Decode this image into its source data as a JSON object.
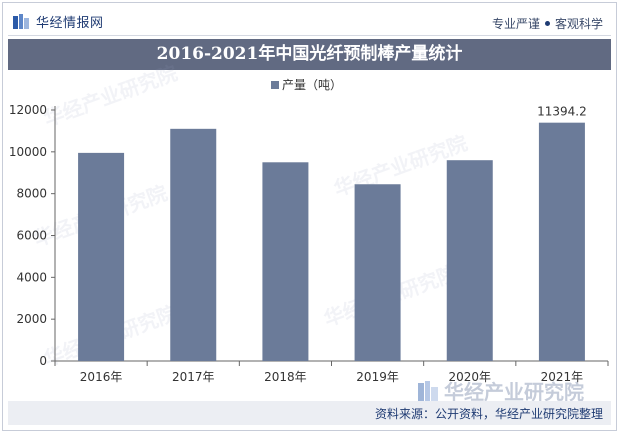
{
  "header": {
    "brand_name": "华经情报网",
    "tag_left": "专业严谨",
    "tag_right": "客观科学"
  },
  "chart_title": "2016-2021年中国光纤预制棒产量统计",
  "footer": {
    "source": "资料来源：公开资料，华经产业研究院整理"
  },
  "watermark": {
    "text": "华经产业研究院"
  },
  "chart_data": {
    "type": "bar",
    "title": "2016-2021年中国光纤预制棒产量统计",
    "categories": [
      "2016年",
      "2017年",
      "2018年",
      "2019年",
      "2020年",
      "2021年"
    ],
    "series": [
      {
        "name": "产量（吨）",
        "values": [
          9950,
          11100,
          9500,
          8450,
          9600,
          11394.2
        ]
      }
    ],
    "data_labels": {
      "2021年": "11394.2"
    },
    "ylim": [
      0,
      12000
    ],
    "yticks": [
      "0",
      "2000",
      "4000",
      "6000",
      "8000",
      "10000",
      "12000"
    ],
    "grid": false,
    "legend_position": "top",
    "bar_color": "#6b7b99"
  }
}
